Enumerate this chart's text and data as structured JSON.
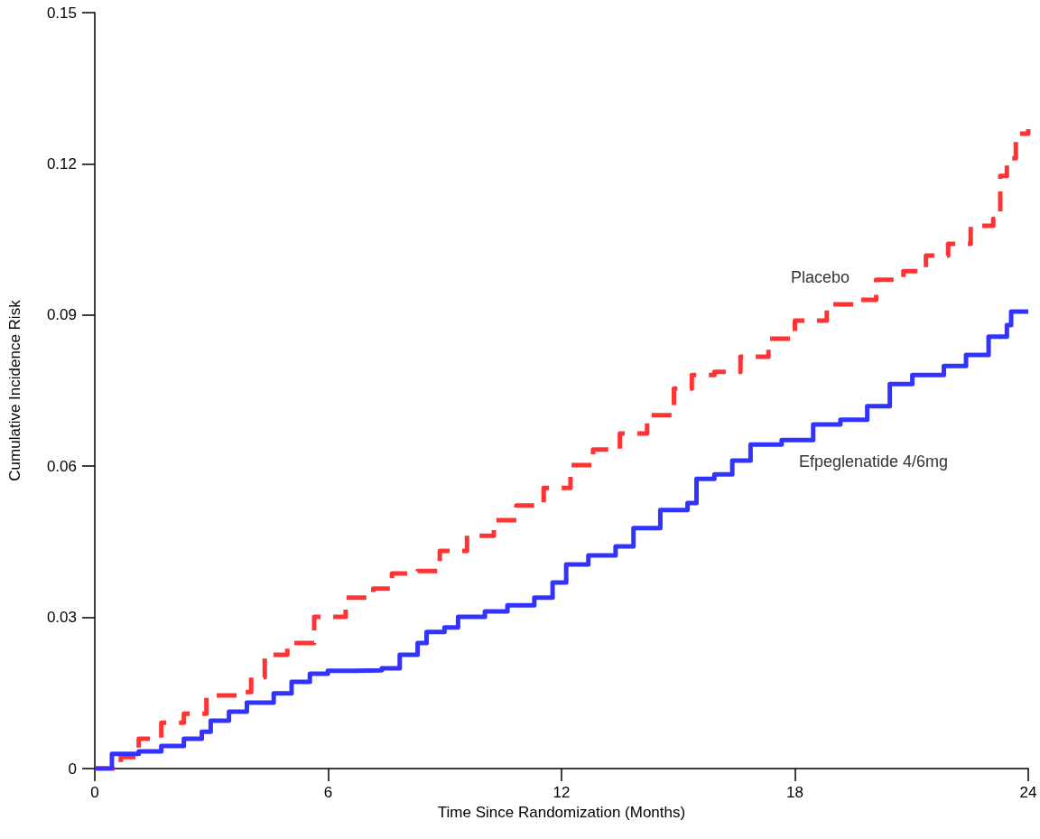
{
  "chart_data": {
    "type": "step",
    "xlabel": "Time Since Randomization (Months)",
    "ylabel": "Cumulative Incidence Risk",
    "xlim": [
      0,
      24
    ],
    "xticks": [
      0,
      6,
      12,
      18,
      24
    ],
    "ylim": [
      0,
      0.15
    ],
    "yticks": [
      0,
      0.03,
      0.06,
      0.09,
      0.12,
      0.15
    ],
    "grid": false,
    "legend": false,
    "marker": "none",
    "series": [
      {
        "name": "Placebo",
        "color": "#ff3333",
        "line_style": "dashed",
        "x": [
          0,
          0.67,
          1.13,
          1.71,
          2.29,
          2.87,
          3.72,
          4.02,
          4.37,
          4.95,
          5.64,
          6.45,
          7.16,
          7.64,
          8.3,
          8.87,
          9.57,
          10.26,
          10.84,
          11.54,
          12.23,
          12.81,
          13.5,
          14.2,
          14.89,
          15.35,
          15.93,
          16.6,
          17.32,
          18.0,
          18.82,
          19.63,
          20.09,
          20.79,
          21.37,
          21.94,
          22.52,
          23.1,
          23.28,
          23.45,
          23.68,
          24
        ],
        "values": [
          0,
          0.0023,
          0.0059,
          0.0091,
          0.0109,
          0.0145,
          0.0152,
          0.0181,
          0.0226,
          0.0249,
          0.0301,
          0.0339,
          0.0357,
          0.0387,
          0.0392,
          0.0432,
          0.0462,
          0.0493,
          0.0522,
          0.0557,
          0.0602,
          0.0633,
          0.0665,
          0.0701,
          0.0754,
          0.0781,
          0.0787,
          0.0817,
          0.0853,
          0.0889,
          0.0921,
          0.093,
          0.097,
          0.0987,
          0.1018,
          0.1041,
          0.1077,
          0.1091,
          0.1176,
          0.1211,
          0.126,
          0.1269
        ]
      },
      {
        "name": "Efpeglenatide 4/6mg",
        "color": "#3333ff",
        "line_style": "solid",
        "x": [
          0,
          0.44,
          1.13,
          1.71,
          2.29,
          2.75,
          2.98,
          3.45,
          3.91,
          4.6,
          5.06,
          5.53,
          5.99,
          6.68,
          7.38,
          7.84,
          8.3,
          8.53,
          8.99,
          9.34,
          10.03,
          10.61,
          11.3,
          11.77,
          12.12,
          12.69,
          13.39,
          13.85,
          14.54,
          15.24,
          15.47,
          15.93,
          16.39,
          16.86,
          17.66,
          18.47,
          19.17,
          19.86,
          20.44,
          21.02,
          21.83,
          22.4,
          22.98,
          23.45,
          23.56,
          24
        ],
        "values": [
          0,
          0.0029,
          0.0034,
          0.0045,
          0.0059,
          0.0073,
          0.0095,
          0.0113,
          0.0131,
          0.0149,
          0.0172,
          0.0188,
          0.0194,
          0.0195,
          0.0199,
          0.0226,
          0.0249,
          0.0271,
          0.028,
          0.0301,
          0.0312,
          0.0324,
          0.0339,
          0.0369,
          0.0405,
          0.0423,
          0.0441,
          0.0477,
          0.0513,
          0.0527,
          0.0575,
          0.0584,
          0.0611,
          0.0643,
          0.0652,
          0.0683,
          0.0692,
          0.0719,
          0.0763,
          0.0781,
          0.0799,
          0.0821,
          0.0857,
          0.088,
          0.0907,
          0.0907
        ]
      }
    ]
  }
}
